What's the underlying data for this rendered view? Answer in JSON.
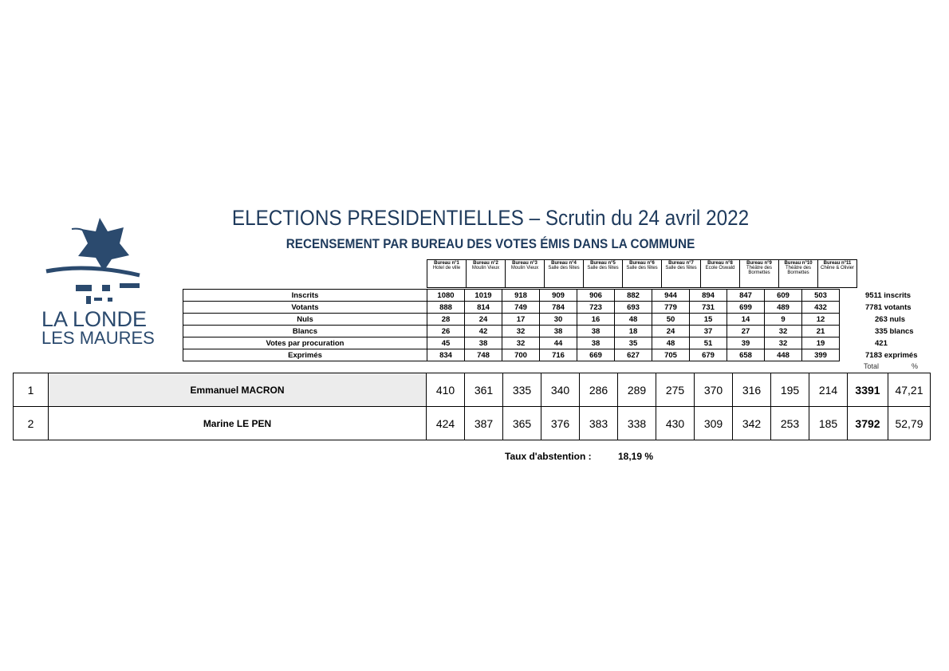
{
  "header": {
    "title": "ELECTIONS PRESIDENTIELLES – Scrutin du 24 avril 2022",
    "subtitle": "RECENSEMENT PAR BUREAU DES VOTES ÉMIS DANS LA COMMUNE"
  },
  "logo": {
    "line1": "LA LONDE",
    "line2": "LES MAURES",
    "color": "#2b4a6e"
  },
  "bureaux": [
    {
      "name": "Bureau n°1",
      "place": "Hotel de ville"
    },
    {
      "name": "Bureau n°2",
      "place": "Moulin Vieux"
    },
    {
      "name": "Bureau n°3",
      "place": "Moulin Vieux"
    },
    {
      "name": "Bureau n°4",
      "place": "Salle des fêtes"
    },
    {
      "name": "Bureau n°5",
      "place": "Salle des fêtes"
    },
    {
      "name": "Bureau n°6",
      "place": "Salle des fêtes"
    },
    {
      "name": "Bureau n°7",
      "place": "Salle des fêtes"
    },
    {
      "name": "Bureau n°8",
      "place": "Ecole Oswald"
    },
    {
      "name": "Bureau n°9",
      "place": "Théâtre des Bormettes"
    },
    {
      "name": "Bureau n°10",
      "place": "Théâtre des Bormettes"
    },
    {
      "name": "Bureau n°11",
      "place": "Chêne & Olivier"
    }
  ],
  "stats": [
    {
      "label": "Inscrits",
      "values": [
        "1080",
        "1019",
        "918",
        "909",
        "906",
        "882",
        "944",
        "894",
        "847",
        "609",
        "503"
      ],
      "total": "9511 inscrits"
    },
    {
      "label": "Votants",
      "values": [
        "888",
        "814",
        "749",
        "784",
        "723",
        "693",
        "779",
        "731",
        "699",
        "489",
        "432"
      ],
      "total": "7781 votants"
    },
    {
      "label": "Nuls",
      "values": [
        "28",
        "24",
        "17",
        "30",
        "16",
        "48",
        "50",
        "15",
        "14",
        "9",
        "12"
      ],
      "total": "263 nuls"
    },
    {
      "label": "Blancs",
      "values": [
        "26",
        "42",
        "32",
        "38",
        "38",
        "18",
        "24",
        "37",
        "27",
        "32",
        "21"
      ],
      "total": "335 blancs"
    },
    {
      "label": "Votes par procuration",
      "values": [
        "45",
        "38",
        "32",
        "44",
        "38",
        "35",
        "48",
        "51",
        "39",
        "32",
        "19"
      ],
      "total": "421"
    },
    {
      "label": "Exprimés",
      "values": [
        "834",
        "748",
        "700",
        "716",
        "669",
        "627",
        "705",
        "679",
        "658",
        "448",
        "399"
      ],
      "total": "7183 exprimés"
    }
  ],
  "col_headers": {
    "total": "Total",
    "pct": "%"
  },
  "candidates": [
    {
      "rank": "1",
      "name": "Emmanuel MACRON",
      "values": [
        "410",
        "361",
        "335",
        "340",
        "286",
        "289",
        "275",
        "370",
        "316",
        "195",
        "214"
      ],
      "total": "3391",
      "pct": "47,21"
    },
    {
      "rank": "2",
      "name": "Marine LE PEN",
      "values": [
        "424",
        "387",
        "365",
        "376",
        "383",
        "338",
        "430",
        "309",
        "342",
        "253",
        "185"
      ],
      "total": "3792",
      "pct": "52,79"
    }
  ],
  "abstention": {
    "label": "Taux d'abstention :",
    "value": "18,19 %"
  }
}
